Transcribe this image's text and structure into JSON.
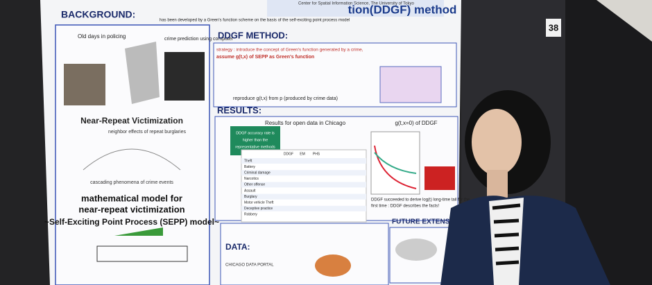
{
  "poster": {
    "number": "38",
    "title_fragment": "tion(DDGF) method",
    "affiliation": "Center for Spatial Information Science, The University of Tokyo",
    "intro": "has been developed by a Green's function scheme on the basis of the self-exciting point process model",
    "background": {
      "heading": "BACKGROUND:",
      "old_days": "Old days in policing",
      "crime_prediction": "crime prediction using computer",
      "near_repeat": "Near-Repeat Victimization",
      "neighbor": "neighbor effects of repeat burglaries",
      "cascading": "cascading phenomena of crime events",
      "model_line1": "mathematical model for",
      "model_line2": "near-repeat victimization",
      "sepp": "~Self-Exciting Point Process (SEPP) model~"
    },
    "method": {
      "heading": "DDGF METHOD:",
      "strategy": "strategy : introduce the concept of Green's function generated by a crime,",
      "assume": "assume g(t,x) of SEPP as Green's function",
      "reproduce": "reproduce g(t,x) from p (produced by crime data)"
    },
    "results": {
      "heading": "RESULTS:",
      "table_title": "Results for open data in Chicago",
      "callout_line1": "DDGF accuracy rate is",
      "callout_line2": "higher than the",
      "callout_line3": "representative methods",
      "columns": [
        "DDGF",
        "EM",
        "PHS"
      ],
      "rows": [
        "Theft",
        "Battery",
        "Criminal damage",
        "Narcotics",
        "Other offense",
        "Assault",
        "Burglary",
        "Motor vehicle Theft",
        "Deceptive practice",
        "Robbery"
      ],
      "graph_title": "g(t,x=0) of DDGF",
      "conclusion_line1": "DDGF succeeded to derive log(t) long-time tail for the",
      "conclusion_line2": "first time : DDGF describes the facts!"
    },
    "future": {
      "heading": "FUTURE EXTENSION:"
    },
    "data": {
      "heading": "DATA:",
      "source": "CHICAGO DATA PORTAL"
    }
  }
}
